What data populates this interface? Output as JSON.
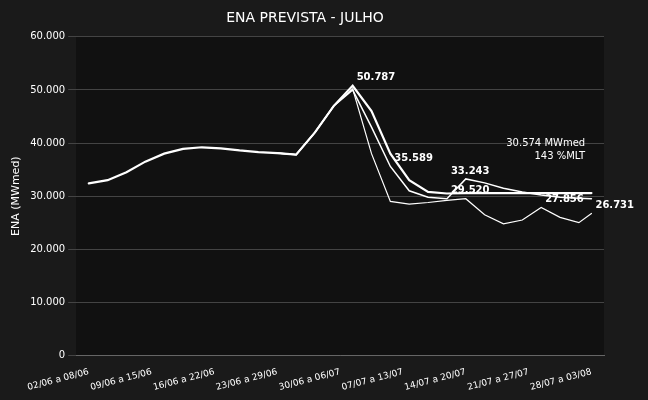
{
  "chart_data": {
    "type": "line",
    "title": "ENA PREVISTA - JULHO",
    "ylabel": "ENA (MWmed)",
    "xlim": [
      -0.2,
      8.2
    ],
    "xticks": [
      {
        "value": 0,
        "label": "02/06 a 08/06"
      },
      {
        "value": 1,
        "label": "09/06 a 15/06"
      },
      {
        "value": 2,
        "label": "16/06 a 22/06"
      },
      {
        "value": 3,
        "label": "23/06 a 29/06"
      },
      {
        "value": 4,
        "label": "30/06 a 06/07"
      },
      {
        "value": 5,
        "label": "07/07 a 13/07"
      },
      {
        "value": 6,
        "label": "14/07 a 20/07"
      },
      {
        "value": 7,
        "label": "21/07 a 27/07"
      },
      {
        "value": 8,
        "label": "28/07 a 03/08"
      }
    ],
    "ylim": [
      0,
      60000
    ],
    "yticks": [
      0,
      {
        "value": 10000,
        "label": "10.000"
      },
      {
        "value": 20000,
        "label": "20.000"
      },
      {
        "value": 30000,
        "label": "30.000"
      },
      {
        "value": 40000,
        "label": "40.000"
      },
      {
        "value": 50000,
        "label": "50.000"
      },
      {
        "value": 60000,
        "label": "60.000"
      }
    ],
    "grid": "y",
    "series": [
      {
        "color": "#ffffff",
        "x": [
          0,
          0.3,
          0.6,
          0.9,
          1.2,
          1.5,
          1.8,
          2.1,
          2.4,
          2.7,
          3.0,
          3.3,
          3.6,
          3.9,
          4.2,
          4.5,
          4.8,
          5.1,
          5.4,
          5.7,
          6.0,
          6.3,
          6.6,
          6.9,
          7.2,
          7.5,
          7.8,
          8.0
        ],
        "values": [
          32400,
          33000,
          34500,
          36500,
          38000,
          38900,
          39200,
          39000,
          38600,
          38300,
          38100,
          37800,
          42000,
          47000,
          50787,
          46000,
          38000,
          33000,
          30800,
          30500,
          30574,
          30574,
          30574,
          30574,
          30574,
          30574,
          30574,
          30574
        ]
      },
      {
        "color": "#ffffff",
        "x": [
          3.0,
          3.3,
          3.6,
          3.9,
          4.2,
          4.5,
          4.8,
          5.1,
          5.4,
          5.7,
          6.0,
          6.3,
          6.6,
          6.9,
          7.2,
          7.5,
          7.8,
          8.0
        ],
        "values": [
          38100,
          37800,
          42000,
          47000,
          50000,
          43000,
          35589,
          31000,
          29800,
          29500,
          33243,
          32500,
          31500,
          30800,
          30200,
          29800,
          29600,
          29500
        ]
      },
      {
        "color": "#ffffff",
        "x": [
          3.0,
          3.3,
          3.6,
          3.9,
          4.2,
          4.5,
          4.8,
          5.1,
          5.4,
          5.7,
          6.0,
          6.3,
          6.6,
          6.9,
          7.2,
          7.5,
          7.8,
          8.0
        ],
        "values": [
          38100,
          37800,
          42000,
          47000,
          50200,
          38000,
          29000,
          28500,
          28800,
          29200,
          29520,
          26500,
          24800,
          25500,
          27856,
          26000,
          25000,
          26731
        ]
      }
    ],
    "annotations": [
      {
        "text": "50.787",
        "x": 4.2,
        "y": 50787,
        "align": "left"
      },
      {
        "text": "35.589",
        "x": 4.8,
        "y": 35589,
        "align": "left"
      },
      {
        "text": "33.243",
        "x": 5.7,
        "y": 33243,
        "align": "left"
      },
      {
        "text": "29.520",
        "x": 5.7,
        "y": 29520,
        "align": "left"
      },
      {
        "text": "27.856",
        "x": 7.2,
        "y": 27856,
        "align": "left"
      },
      {
        "text": "26.731",
        "x": 8.0,
        "y": 26731,
        "align": "left"
      },
      {
        "text": "30.574 MWmed",
        "x": 7.9,
        "y": 40000,
        "align": "right"
      },
      {
        "text": "143 %MLT",
        "x": 7.9,
        "y": 37500,
        "align": "right"
      }
    ]
  }
}
